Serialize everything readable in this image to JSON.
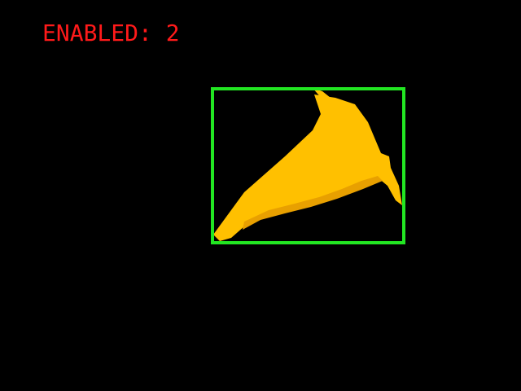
{
  "status": {
    "text": "ENABLED: 2",
    "color": "#ff1a1a"
  },
  "detection": {
    "box_color": "#22e622",
    "object_color": "#ffc000",
    "object_shadow_color": "#e8a000"
  },
  "icons": {
    "detected_object": "traffic-cone-icon"
  }
}
